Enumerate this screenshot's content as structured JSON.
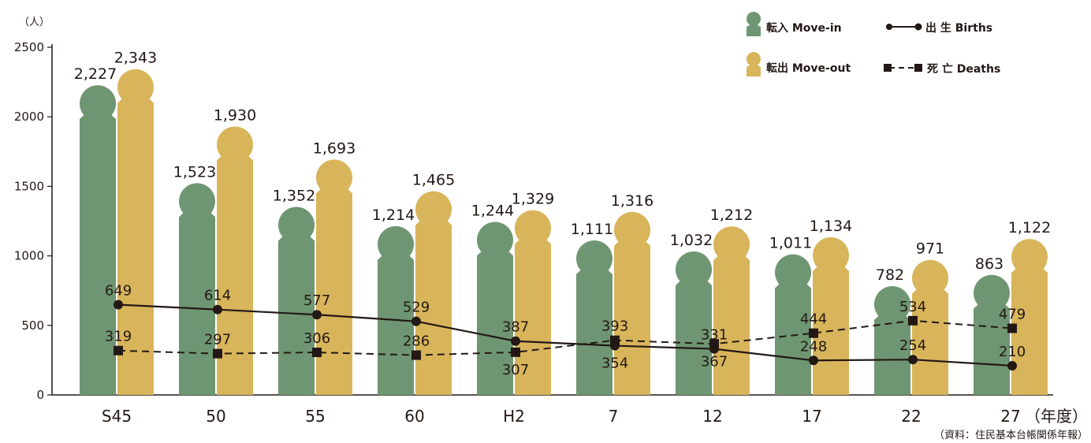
{
  "chart_data": {
    "type": "bar",
    "y_unit": "（人）",
    "x_unit": "（年度）",
    "source": "（資料：住民基本台帳関係年報）",
    "categories": [
      "S45",
      "50",
      "55",
      "60",
      "H2",
      "7",
      "12",
      "17",
      "22",
      "27"
    ],
    "ylim": [
      0,
      2500
    ],
    "yticks": [
      0,
      500,
      1000,
      1500,
      2000,
      2500
    ],
    "grid": false,
    "legend_position": "top-right",
    "series": [
      {
        "name": "転入 Move-in",
        "kind": "bar",
        "color": "#6f9672",
        "values": [
          2227,
          1523,
          1352,
          1214,
          1244,
          1111,
          1032,
          1011,
          782,
          863
        ],
        "labels": [
          "2,227",
          "1,523",
          "1,352",
          "1,214",
          "1,244",
          "1,111",
          "1,032",
          "1,011",
          "782",
          "863"
        ]
      },
      {
        "name": "転出 Move-out",
        "kind": "bar",
        "color": "#d8b55b",
        "values": [
          2343,
          1930,
          1693,
          1465,
          1329,
          1316,
          1212,
          1134,
          971,
          1122
        ],
        "labels": [
          "2,343",
          "1,930",
          "1,693",
          "1,465",
          "1,329",
          "1,316",
          "1,212",
          "1,134",
          "971",
          "1,122"
        ]
      },
      {
        "name": "出 生 Births",
        "kind": "line",
        "style": "solid",
        "marker": "circle",
        "color": "#231815",
        "values": [
          649,
          614,
          577,
          529,
          387,
          354,
          331,
          248,
          254,
          210
        ]
      },
      {
        "name": "死 亡 Deaths",
        "kind": "line",
        "style": "dashed",
        "marker": "square",
        "color": "#231815",
        "values": [
          319,
          297,
          306,
          286,
          307,
          393,
          367,
          444,
          534,
          479
        ]
      }
    ]
  }
}
